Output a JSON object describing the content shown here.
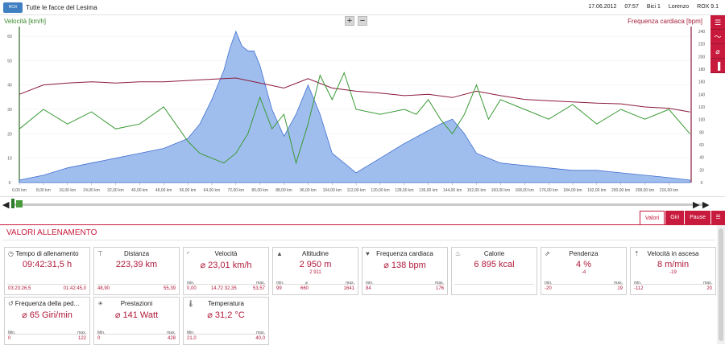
{
  "header": {
    "logo_text": "ROX",
    "title": "Tutte le facce del Lesima",
    "date": "17.06.2012",
    "time": "07:57",
    "bike": "Bici 1",
    "user": "Lorenzo",
    "device": "ROX 9.1"
  },
  "chart": {
    "left_axis_title": "Velocità [km/h]",
    "right_axis_title": "Frequenza cardiaca [bpm]",
    "zoom_in": "+",
    "zoom_out": "−",
    "colors": {
      "speed": "#3a9a35",
      "heart_rate": "#8b1a3a",
      "altitude_fill": "#8fb3ea",
      "altitude_line": "#3f6fd1"
    }
  },
  "chart_data": {
    "type": "area",
    "x_unit": "km",
    "x_ticks": [
      "0,00 km",
      "8,00 km",
      "16,00 km",
      "24,00 km",
      "32,00 km",
      "40,00 km",
      "48,00 km",
      "56,00 km",
      "64,00 km",
      "72,00 km",
      "80,00 km",
      "88,00 km",
      "96,00 km",
      "104,00 km",
      "112,00 km",
      "120,00 km",
      "128,00 km",
      "136,00 km",
      "144,00 km",
      "152,00 km",
      "160,00 km",
      "168,00 km",
      "176,00 km",
      "184,00 km",
      "192,00 km",
      "200,00 km",
      "208,00 km",
      "216,00 km"
    ],
    "xlim": [
      0,
      223.39
    ],
    "left_ticks": [
      "0",
      "10",
      "20",
      "30",
      "40",
      "50",
      "60"
    ],
    "ylim_left": [
      0,
      62
    ],
    "right_ticks": [
      "0",
      "20",
      "40",
      "60",
      "80",
      "100",
      "120",
      "140",
      "160",
      "180",
      "200",
      "220",
      "240"
    ],
    "ylim_right": [
      0,
      240
    ],
    "series": [
      {
        "name": "Altitudine",
        "axis": "left",
        "x": [
          0,
          8,
          16,
          24,
          32,
          40,
          48,
          56,
          60,
          64,
          68,
          70,
          72,
          74,
          76,
          78,
          80,
          84,
          88,
          92,
          96,
          100,
          104,
          108,
          112,
          120,
          128,
          134,
          140,
          144,
          148,
          152,
          156,
          160,
          168,
          176,
          184,
          192,
          200,
          208,
          216,
          223
        ],
        "values": [
          1,
          3,
          6,
          8,
          10,
          12,
          14,
          18,
          24,
          34,
          46,
          55,
          62,
          56,
          54,
          54,
          48,
          30,
          19,
          28,
          40,
          28,
          12,
          8,
          4,
          10,
          16,
          20,
          24,
          26,
          20,
          12,
          10,
          8,
          7,
          6,
          5,
          5,
          4,
          3,
          2,
          1
        ]
      },
      {
        "name": "Frequenza cardiaca",
        "axis": "right",
        "x": [
          0,
          8,
          16,
          24,
          32,
          40,
          48,
          56,
          64,
          72,
          80,
          88,
          96,
          104,
          112,
          120,
          128,
          136,
          144,
          152,
          160,
          168,
          176,
          184,
          192,
          200,
          208,
          216,
          223
        ],
        "values": [
          140,
          155,
          158,
          160,
          158,
          160,
          160,
          162,
          164,
          166,
          158,
          150,
          165,
          150,
          145,
          142,
          138,
          140,
          135,
          145,
          138,
          132,
          130,
          128,
          126,
          125,
          120,
          118,
          112
        ]
      },
      {
        "name": "Velocità",
        "axis": "left",
        "x": [
          0,
          8,
          16,
          24,
          32,
          40,
          48,
          56,
          60,
          64,
          68,
          72,
          76,
          80,
          84,
          88,
          92,
          96,
          100,
          104,
          108,
          112,
          120,
          128,
          132,
          136,
          140,
          144,
          148,
          152,
          156,
          160,
          168,
          176,
          184,
          192,
          200,
          208,
          216,
          223
        ],
        "values": [
          22,
          30,
          24,
          29,
          22,
          24,
          31,
          17,
          12,
          10,
          8,
          12,
          20,
          35,
          22,
          28,
          8,
          24,
          44,
          34,
          45,
          30,
          28,
          30,
          28,
          34,
          26,
          20,
          28,
          40,
          26,
          34,
          30,
          26,
          32,
          24,
          30,
          26,
          30,
          20
        ]
      }
    ]
  },
  "side_tools": [
    "list-icon",
    "chart-icon",
    "average-icon",
    "bars-icon"
  ],
  "tabs": {
    "valori": "Valori",
    "giri": "Giri",
    "pause": "Pause"
  },
  "panel": {
    "title": "VALORI ALLENAMENTO",
    "cards": [
      {
        "label": "Tempo di allenamento",
        "value": "09:42:31,5 h",
        "sub": "",
        "min_label": "",
        "mid_label": "",
        "max_label": "",
        "min": "03:23:26,5",
        "mid": "",
        "max": "01:42:45,0"
      },
      {
        "label": "Distanza",
        "value": "223,39 km",
        "sub": "",
        "min_label": "",
        "mid_label": "",
        "max_label": "",
        "min": "48,90",
        "mid": "",
        "max": "55,39"
      },
      {
        "label": "Velocità",
        "value": "⌀ 23,01 km/h",
        "sub": "",
        "min_label": "min.",
        "mid_label": "",
        "max_label": "max.",
        "min": "0,00",
        "mid": "14,72 32,35",
        "max": "53,57"
      },
      {
        "label": "Altitudine",
        "value": "2 950 m",
        "sub": "2 911",
        "min_label": "min.",
        "mid_label": "⌀",
        "max_label": "max.",
        "min": "99",
        "mid": "660",
        "max": "1641"
      },
      {
        "label": "Frequenza cardiaca",
        "value": "⌀ 138 bpm",
        "sub": "",
        "min_label": "min.",
        "mid_label": "",
        "max_label": "max.",
        "min": "84",
        "mid": "",
        "max": "176"
      },
      {
        "label": "Calorie",
        "value": "6 895 kcal",
        "sub": "",
        "min_label": "",
        "mid_label": "",
        "max_label": "",
        "min": "",
        "mid": "",
        "max": ""
      },
      {
        "label": "Pendenza",
        "value": "4 %",
        "sub": "-4",
        "min_label": "min.",
        "mid_label": "",
        "max_label": "max.",
        "min": "-20",
        "mid": "",
        "max": "19"
      },
      {
        "label": "Velocità in ascesa",
        "value": "8 m/min",
        "sub": "-19",
        "min_label": "min.",
        "mid_label": "",
        "max_label": "max.",
        "min": "-112",
        "mid": "",
        "max": "20"
      },
      {
        "label": "Frequenza della ped...",
        "value": "⌀ 65 Giri/min",
        "sub": "",
        "min_label": "Min.",
        "mid_label": "",
        "max_label": "max.",
        "min": "0",
        "mid": "",
        "max": "122"
      },
      {
        "label": "Prestazioni",
        "value": "⌀ 141 Watt",
        "sub": "",
        "min_label": "Min.",
        "mid_label": "",
        "max_label": "max.",
        "min": "0",
        "mid": "",
        "max": "428"
      },
      {
        "label": "Temperatura",
        "value": "⌀ 31,2 °C",
        "sub": "",
        "min_label": "Min.",
        "mid_label": "",
        "max_label": "max.",
        "min": "21,0",
        "mid": "",
        "max": "40,0"
      }
    ]
  }
}
